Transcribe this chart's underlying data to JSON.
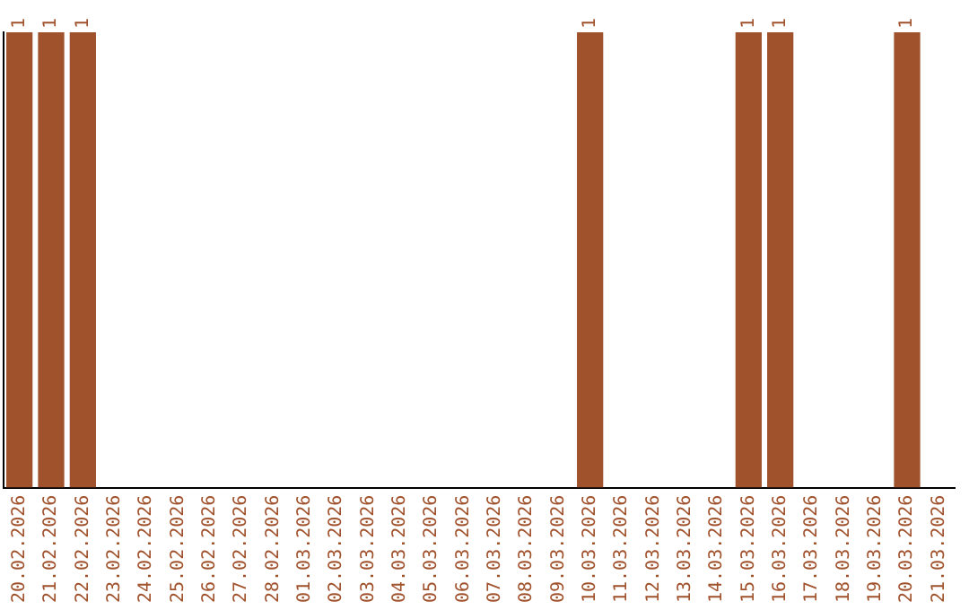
{
  "chart_data": {
    "type": "bar",
    "tick_labels": "x",
    "color": "#a0522d",
    "categories": [
      "20.02.2026",
      "21.02.2026",
      "22.02.2026",
      "23.02.2026",
      "24.02.2026",
      "25.02.2026",
      "26.02.2026",
      "27.02.2026",
      "28.02.2026",
      "01.03.2026",
      "02.03.2026",
      "03.03.2026",
      "04.03.2026",
      "05.03.2026",
      "06.03.2026",
      "07.03.2026",
      "08.03.2026",
      "09.03.2026",
      "10.03.2026",
      "11.03.2026",
      "12.03.2026",
      "13.03.2026",
      "14.03.2026",
      "15.03.2026",
      "16.03.2026",
      "17.03.2026",
      "18.03.2026",
      "19.03.2026",
      "20.03.2026",
      "21.03.2026"
    ],
    "values": [
      1,
      1,
      1,
      0,
      0,
      0,
      0,
      0,
      0,
      0,
      0,
      0,
      0,
      0,
      0,
      0,
      0,
      0,
      1,
      0,
      0,
      0,
      0,
      1,
      1,
      0,
      0,
      0,
      1,
      0
    ],
    "value_labels": [
      "1",
      "1",
      "1",
      null,
      null,
      null,
      null,
      null,
      null,
      null,
      null,
      null,
      null,
      null,
      null,
      null,
      null,
      null,
      "1",
      null,
      null,
      null,
      null,
      "1",
      "1",
      null,
      null,
      null,
      "1",
      null
    ],
    "grid": false,
    "legend": false
  }
}
